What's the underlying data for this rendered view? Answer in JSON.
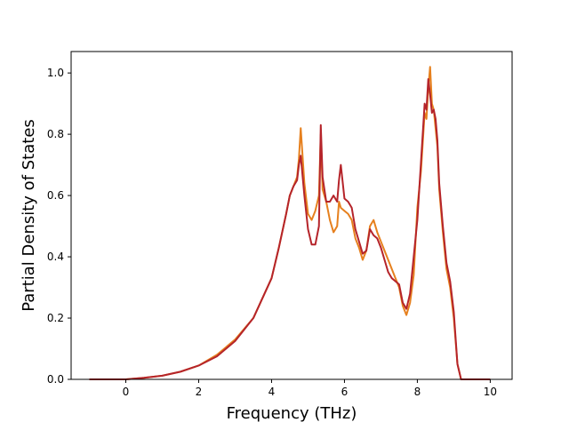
{
  "chart_data": {
    "type": "line",
    "title": "",
    "xlabel": "Frequency (THz)",
    "ylabel": "Partial Density of States",
    "xlim": [
      -1.5,
      10.6
    ],
    "ylim": [
      0.0,
      1.07
    ],
    "xticks": [
      0,
      2,
      4,
      6,
      8,
      10
    ],
    "xtick_labels": [
      "0",
      "2",
      "4",
      "6",
      "8",
      "10"
    ],
    "yticks": [
      0.0,
      0.2,
      0.4,
      0.6,
      0.8,
      1.0
    ],
    "ytick_labels": [
      "0.0",
      "0.2",
      "0.4",
      "0.6",
      "0.8",
      "1.0"
    ],
    "grid": false,
    "legend": "none",
    "series": [
      {
        "color": "#e6801e",
        "x": [
          -1.0,
          -0.5,
          0.0,
          0.5,
          1.0,
          1.5,
          2.0,
          2.5,
          3.0,
          3.5,
          4.0,
          4.2,
          4.4,
          4.5,
          4.6,
          4.7,
          4.75,
          4.8,
          4.9,
          5.0,
          5.1,
          5.2,
          5.3,
          5.35,
          5.4,
          5.5,
          5.6,
          5.7,
          5.8,
          5.85,
          5.9,
          6.0,
          6.1,
          6.2,
          6.3,
          6.4,
          6.5,
          6.6,
          6.7,
          6.8,
          6.9,
          7.0,
          7.1,
          7.2,
          7.3,
          7.4,
          7.5,
          7.6,
          7.7,
          7.8,
          7.9,
          8.0,
          8.1,
          8.2,
          8.25,
          8.3,
          8.35,
          8.4,
          8.45,
          8.5,
          8.55,
          8.6,
          8.7,
          8.8,
          8.9,
          9.0,
          9.1,
          9.2,
          9.5,
          10.0
        ],
        "values": [
          0.0,
          0.0,
          0.0,
          0.005,
          0.012,
          0.025,
          0.045,
          0.08,
          0.13,
          0.2,
          0.33,
          0.43,
          0.54,
          0.6,
          0.63,
          0.66,
          0.72,
          0.82,
          0.64,
          0.54,
          0.52,
          0.55,
          0.6,
          0.8,
          0.62,
          0.58,
          0.52,
          0.48,
          0.5,
          0.58,
          0.56,
          0.55,
          0.54,
          0.52,
          0.46,
          0.43,
          0.39,
          0.42,
          0.5,
          0.52,
          0.48,
          0.45,
          0.42,
          0.39,
          0.36,
          0.33,
          0.3,
          0.24,
          0.21,
          0.25,
          0.34,
          0.56,
          0.68,
          0.87,
          0.85,
          0.95,
          1.02,
          0.9,
          0.88,
          0.82,
          0.76,
          0.62,
          0.48,
          0.36,
          0.3,
          0.2,
          0.05,
          0.0,
          0.0,
          0.0
        ]
      },
      {
        "color": "#b5242a",
        "x": [
          -1.0,
          -0.5,
          0.0,
          0.5,
          1.0,
          1.5,
          2.0,
          2.5,
          3.0,
          3.5,
          4.0,
          4.2,
          4.4,
          4.5,
          4.6,
          4.7,
          4.75,
          4.8,
          4.9,
          5.0,
          5.1,
          5.2,
          5.3,
          5.35,
          5.4,
          5.5,
          5.6,
          5.7,
          5.8,
          5.85,
          5.9,
          6.0,
          6.1,
          6.2,
          6.3,
          6.4,
          6.5,
          6.6,
          6.7,
          6.8,
          6.9,
          7.0,
          7.1,
          7.2,
          7.3,
          7.4,
          7.5,
          7.6,
          7.7,
          7.8,
          7.9,
          8.0,
          8.1,
          8.2,
          8.25,
          8.3,
          8.35,
          8.4,
          8.45,
          8.5,
          8.55,
          8.6,
          8.7,
          8.8,
          8.9,
          9.0,
          9.1,
          9.2,
          9.5,
          10.0
        ],
        "values": [
          0.0,
          0.0,
          0.0,
          0.005,
          0.012,
          0.025,
          0.045,
          0.075,
          0.125,
          0.2,
          0.33,
          0.43,
          0.54,
          0.6,
          0.63,
          0.65,
          0.7,
          0.73,
          0.6,
          0.49,
          0.44,
          0.44,
          0.5,
          0.83,
          0.66,
          0.58,
          0.58,
          0.6,
          0.58,
          0.65,
          0.7,
          0.59,
          0.58,
          0.56,
          0.49,
          0.45,
          0.41,
          0.42,
          0.49,
          0.47,
          0.46,
          0.43,
          0.39,
          0.35,
          0.33,
          0.32,
          0.31,
          0.25,
          0.23,
          0.28,
          0.4,
          0.52,
          0.71,
          0.9,
          0.88,
          0.98,
          0.93,
          0.87,
          0.88,
          0.85,
          0.78,
          0.64,
          0.5,
          0.38,
          0.32,
          0.22,
          0.05,
          0.0,
          0.0,
          0.0
        ]
      }
    ]
  }
}
